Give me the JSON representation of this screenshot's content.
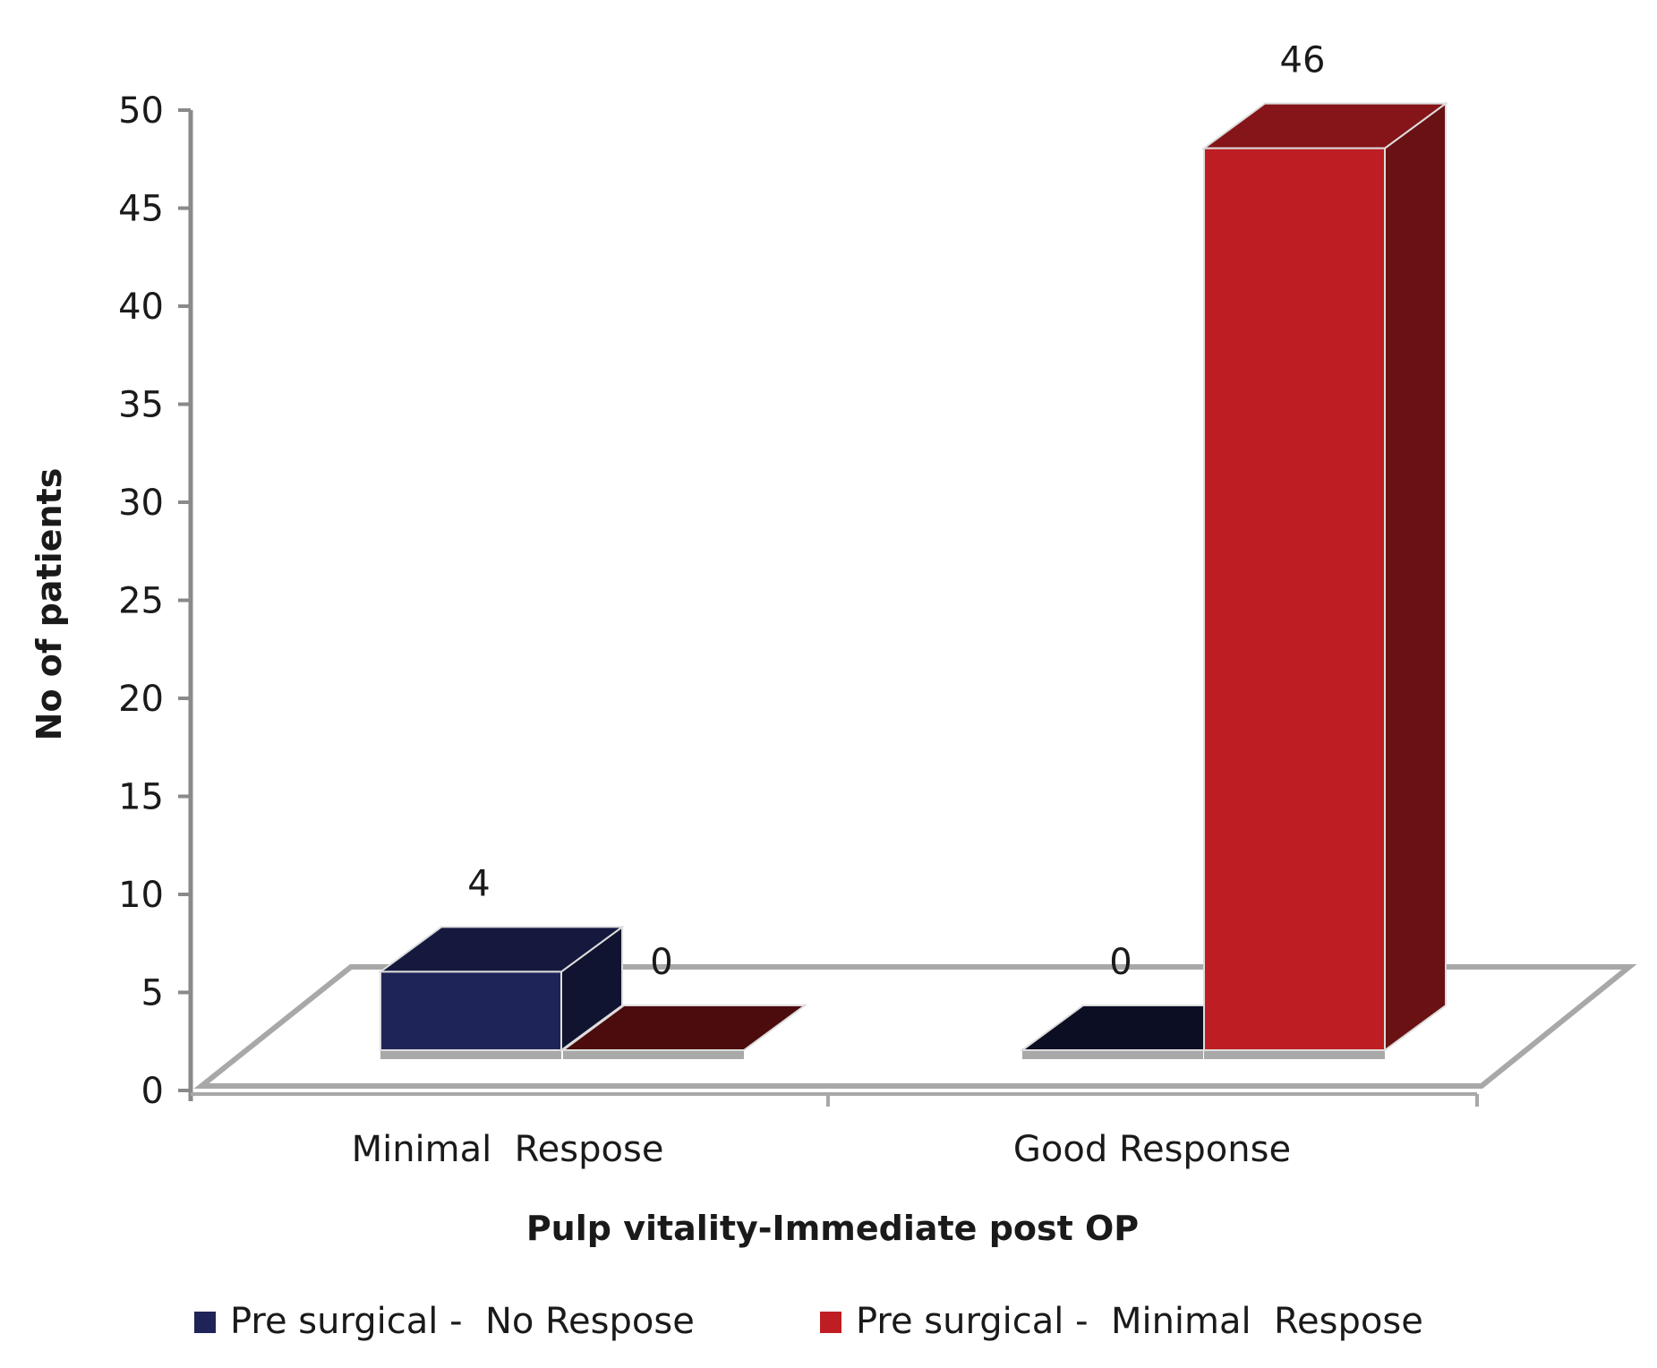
{
  "chart_data": {
    "type": "bar",
    "three_d": true,
    "xlabel": "Pulp vitality-Immediate post OP",
    "ylabel": "No of patients",
    "ylim": [
      0,
      50
    ],
    "yticks": [
      0,
      5,
      10,
      15,
      20,
      25,
      30,
      35,
      40,
      45,
      50
    ],
    "categories": [
      "Minimal  Respose",
      "Good Response"
    ],
    "series": [
      {
        "name": "Pre surgical -  No Respose",
        "values": [
          4,
          0
        ],
        "color": "#1f2458"
      },
      {
        "name": "Pre surgical -  Minimal  Respose",
        "values": [
          0,
          46
        ],
        "color": "#be1e23"
      }
    ],
    "legend": "bottom",
    "grid": false
  }
}
